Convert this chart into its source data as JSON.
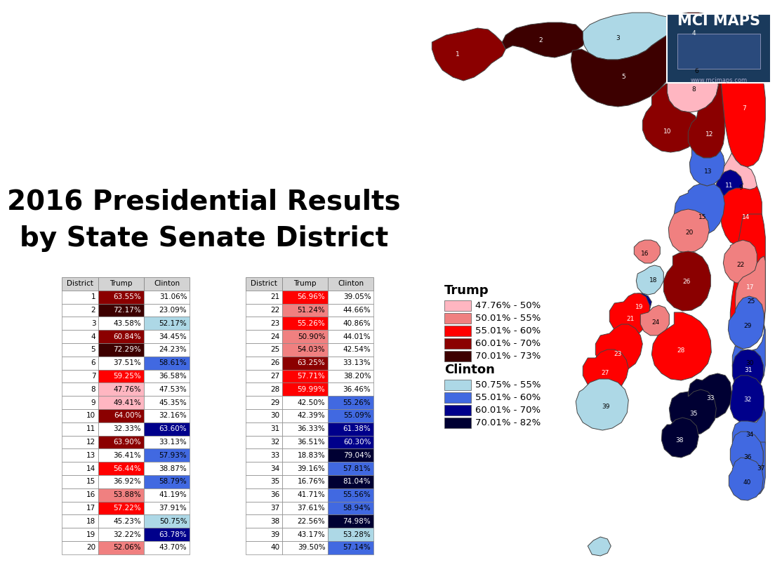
{
  "title_line1": "2016 Presidential Results",
  "title_line2": "by State Senate District",
  "title_fontsize": 28,
  "background_color": "#ffffff",
  "table_data": [
    [
      1,
      "63.55%",
      "31.06%"
    ],
    [
      2,
      "72.17%",
      "23.09%"
    ],
    [
      3,
      "43.58%",
      "52.17%"
    ],
    [
      4,
      "60.84%",
      "34.45%"
    ],
    [
      5,
      "72.29%",
      "24.23%"
    ],
    [
      6,
      "37.51%",
      "58.61%"
    ],
    [
      7,
      "59.25%",
      "36.58%"
    ],
    [
      8,
      "47.76%",
      "47.53%"
    ],
    [
      9,
      "49.41%",
      "45.35%"
    ],
    [
      10,
      "64.00%",
      "32.16%"
    ],
    [
      11,
      "32.33%",
      "63.60%"
    ],
    [
      12,
      "63.90%",
      "33.13%"
    ],
    [
      13,
      "36.41%",
      "57.93%"
    ],
    [
      14,
      "56.44%",
      "38.87%"
    ],
    [
      15,
      "36.92%",
      "58.79%"
    ],
    [
      16,
      "53.88%",
      "41.19%"
    ],
    [
      17,
      "57.22%",
      "37.91%"
    ],
    [
      18,
      "45.23%",
      "50.75%"
    ],
    [
      19,
      "32.22%",
      "63.78%"
    ],
    [
      20,
      "52.06%",
      "43.70%"
    ],
    [
      21,
      "56.96%",
      "39.05%"
    ],
    [
      22,
      "51.24%",
      "44.66%"
    ],
    [
      23,
      "55.26%",
      "40.86%"
    ],
    [
      24,
      "50.90%",
      "44.01%"
    ],
    [
      25,
      "54.03%",
      "42.54%"
    ],
    [
      26,
      "63.25%",
      "33.13%"
    ],
    [
      27,
      "57.71%",
      "38.20%"
    ],
    [
      28,
      "59.99%",
      "36.46%"
    ],
    [
      29,
      "42.50%",
      "55.26%"
    ],
    [
      30,
      "42.39%",
      "55.09%"
    ],
    [
      31,
      "36.33%",
      "61.38%"
    ],
    [
      32,
      "36.51%",
      "60.30%"
    ],
    [
      33,
      "18.83%",
      "79.04%"
    ],
    [
      34,
      "39.16%",
      "57.81%"
    ],
    [
      35,
      "16.76%",
      "81.04%"
    ],
    [
      36,
      "41.71%",
      "55.56%"
    ],
    [
      37,
      "37.61%",
      "58.94%"
    ],
    [
      38,
      "22.56%",
      "74.98%"
    ],
    [
      39,
      "43.17%",
      "53.28%"
    ],
    [
      40,
      "39.50%",
      "57.14%"
    ]
  ],
  "header_bg": "#D3D3D3",
  "table_border": "#888888",
  "legend_trump_ranges": [
    [
      "47.76% - 50%",
      "#FFB6C1"
    ],
    [
      "50.01% - 55%",
      "#F08080"
    ],
    [
      "55.01% - 60%",
      "#FF0000"
    ],
    [
      "60.01% - 70%",
      "#8B0000"
    ],
    [
      "70.01% - 73%",
      "#3D0000"
    ]
  ],
  "legend_clinton_ranges": [
    [
      "50.75% - 55%",
      "#ADD8E6"
    ],
    [
      "55.01% - 60%",
      "#4169E1"
    ],
    [
      "60.01% - 70%",
      "#00008B"
    ],
    [
      "70.01% - 82%",
      "#000033"
    ]
  ],
  "logo_bg": "#1a3a5c",
  "logo_text1": "MCI MAPS",
  "logo_text2": "www.mcimaps.com"
}
